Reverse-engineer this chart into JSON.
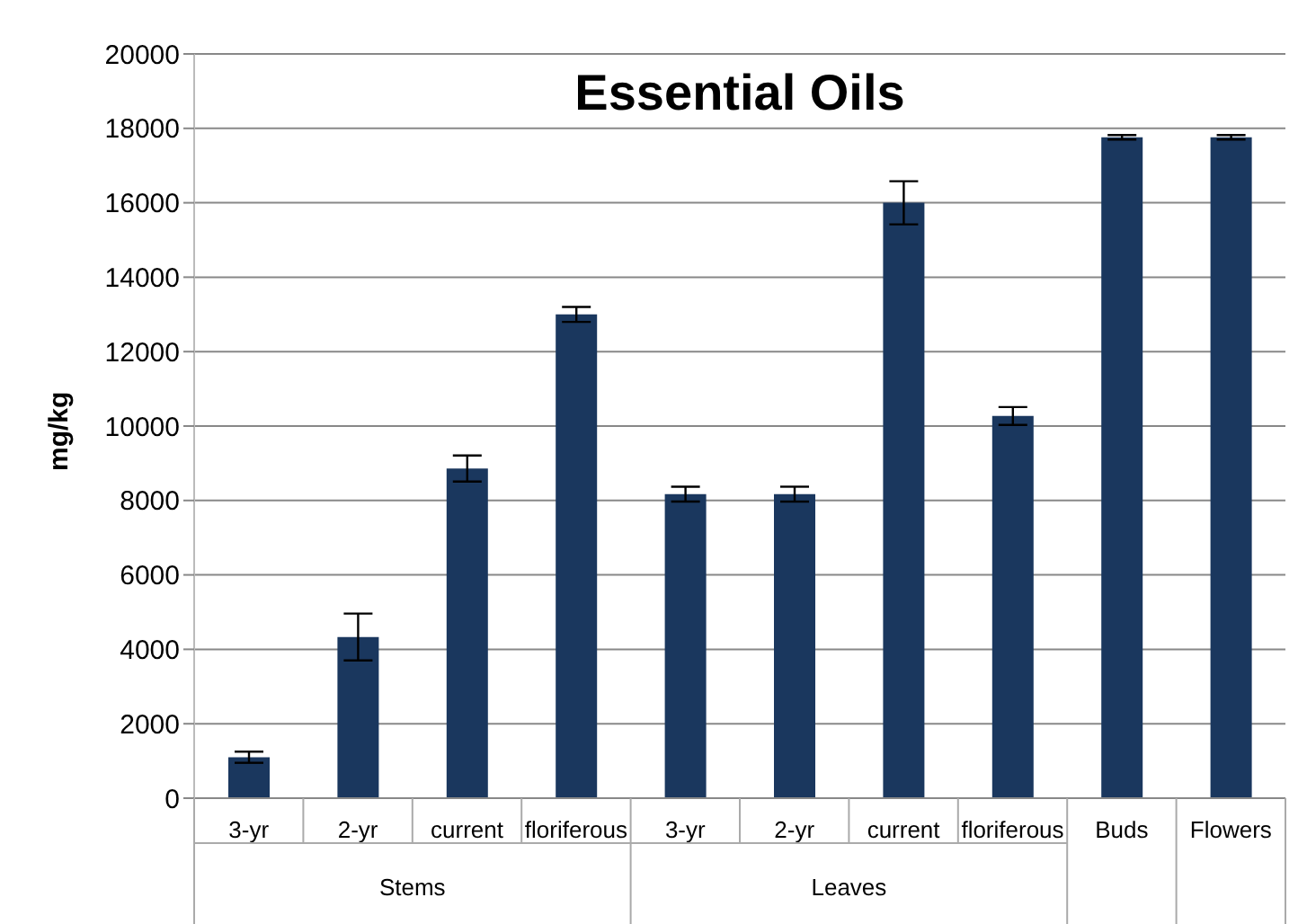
{
  "chart_data": {
    "type": "bar",
    "title": "Essential Oils",
    "ylabel": "mg/kg",
    "categories": [
      "3-yr",
      "2-yr",
      "current",
      "floriferous",
      "3-yr",
      "2-yr",
      "current",
      "floriferous",
      "Buds",
      "Flowers"
    ],
    "values": [
      1100,
      4330,
      8860,
      13000,
      8170,
      8170,
      16000,
      10270,
      17760,
      17760
    ],
    "errors": [
      150,
      630,
      350,
      200,
      200,
      200,
      580,
      240,
      60,
      60
    ],
    "color": "#1a375e",
    "annotations": [
      "Stems",
      "Leaves"
    ],
    "ylim": [
      0,
      20000
    ],
    "yticks": [
      0,
      2000,
      4000,
      6000,
      8000,
      10000,
      12000,
      14000,
      16000,
      18000,
      20000
    ],
    "grid": "y",
    "legend": false
  }
}
